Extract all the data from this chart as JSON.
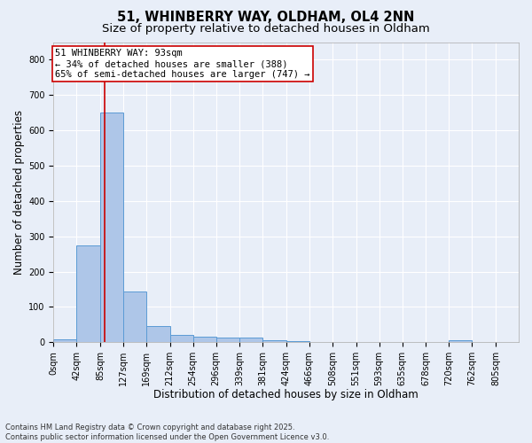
{
  "title_line1": "51, WHINBERRY WAY, OLDHAM, OL4 2NN",
  "title_line2": "Size of property relative to detached houses in Oldham",
  "xlabel": "Distribution of detached houses by size in Oldham",
  "ylabel": "Number of detached properties",
  "footnote": "Contains HM Land Registry data © Crown copyright and database right 2025.\nContains public sector information licensed under the Open Government Licence v3.0.",
  "bin_edges": [
    0,
    42,
    85,
    127,
    169,
    212,
    254,
    296,
    339,
    381,
    424,
    466,
    508,
    551,
    593,
    635,
    678,
    720,
    762,
    805,
    847
  ],
  "bar_heights": [
    8,
    275,
    650,
    143,
    45,
    20,
    15,
    12,
    12,
    5,
    2,
    1,
    0,
    0,
    0,
    0,
    0,
    5,
    0,
    0
  ],
  "bar_color": "#aec6e8",
  "bar_edge_color": "#5b9bd5",
  "property_size": 93,
  "property_line_color": "#cc0000",
  "annotation_text": "51 WHINBERRY WAY: 93sqm\n← 34% of detached houses are smaller (388)\n65% of semi-detached houses are larger (747) →",
  "annotation_box_color": "#ffffff",
  "annotation_box_edge_color": "#cc0000",
  "ylim": [
    0,
    850
  ],
  "yticks": [
    0,
    100,
    200,
    300,
    400,
    500,
    600,
    700,
    800
  ],
  "background_color": "#e8eef8",
  "plot_background_color": "#e8eef8",
  "grid_color": "#ffffff",
  "title_fontsize": 10.5,
  "subtitle_fontsize": 9.5,
  "axis_label_fontsize": 8.5,
  "tick_fontsize": 7,
  "annotation_fontsize": 7.5,
  "footnote_fontsize": 6
}
